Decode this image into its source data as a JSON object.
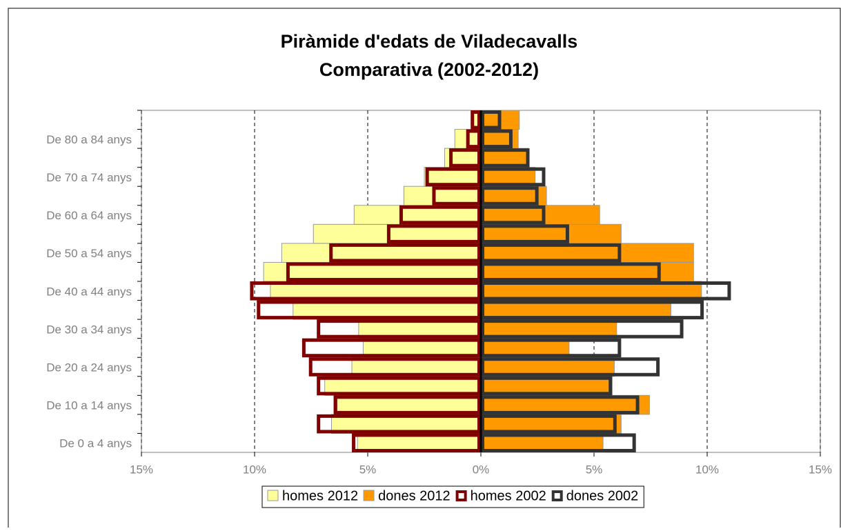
{
  "chart_data": {
    "type": "pyramid",
    "title": "Piràmide d'edats de Viladecavalls",
    "subtitle": "Comparativa (2002-2012)",
    "categories": [
      "De 0 a 4 anys",
      null,
      "De 10 a 14 anys",
      null,
      "De 20 a 24 anys",
      null,
      "De 30 a 34 anys",
      null,
      "De 40 a 44 anys",
      null,
      "De 50 a 54 anys",
      null,
      "De 60 a 64 anys",
      null,
      "De 70 a 74 anys",
      null,
      "De 80 a 84 anys",
      null
    ],
    "series": [
      {
        "name": "homes 2012",
        "color": "#ffff99",
        "outline": false,
        "values": [
          -5.45,
          -6.6,
          -6.5,
          -6.9,
          -5.7,
          -5.2,
          -5.4,
          -8.3,
          -9.3,
          -9.6,
          -8.8,
          -7.4,
          -5.6,
          -3.4,
          -2.5,
          -1.6,
          -1.15,
          -0.4
        ]
      },
      {
        "name": "dones 2012",
        "color": "#ff9900",
        "outline": false,
        "values": [
          5.4,
          6.2,
          7.45,
          5.8,
          5.9,
          3.9,
          6.0,
          8.4,
          9.75,
          9.4,
          9.4,
          6.2,
          5.25,
          2.9,
          2.4,
          2.1,
          1.65,
          1.7
        ]
      },
      {
        "name": "homes 2002",
        "color": "#800000",
        "outline": true,
        "values": [
          -5.7,
          -7.25,
          -6.5,
          -7.25,
          -7.6,
          -7.9,
          -7.25,
          -9.9,
          -10.2,
          -8.6,
          -6.7,
          -4.15,
          -3.6,
          -2.15,
          -2.45,
          -1.4,
          -0.65,
          -0.45
        ]
      },
      {
        "name": "dones 2002",
        "color": "#333333",
        "outline": true,
        "values": [
          6.85,
          6.0,
          7.0,
          5.8,
          7.9,
          6.2,
          8.95,
          9.85,
          11.05,
          7.95,
          6.2,
          3.9,
          2.85,
          2.55,
          2.85,
          2.15,
          1.4,
          0.9
        ]
      }
    ],
    "xlim": [
      -15,
      15
    ],
    "xticks": [
      {
        "value": -15,
        "label": "15%"
      },
      {
        "value": -10,
        "label": "10%"
      },
      {
        "value": -5,
        "label": "5%"
      },
      {
        "value": 0,
        "label": "0%"
      },
      {
        "value": 5,
        "label": "5%"
      },
      {
        "value": 10,
        "label": "10%"
      },
      {
        "value": 15,
        "label": "15%"
      }
    ],
    "grid": true,
    "legend": "bottom"
  }
}
